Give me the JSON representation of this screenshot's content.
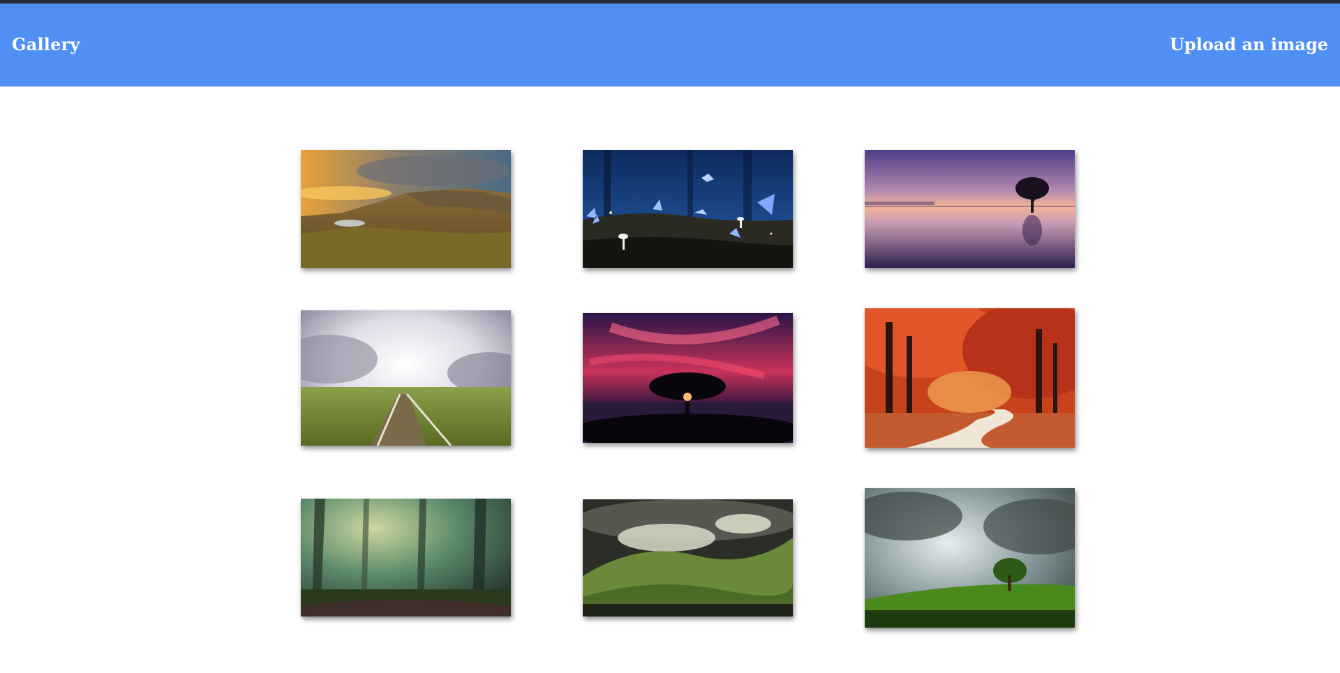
{
  "header": {
    "brand_label": "Gallery",
    "upload_label": "Upload an image",
    "background": "#5090f5",
    "text_color": "#ffffff"
  },
  "gallery": {
    "images": [
      {
        "subject": "mountain-ridge-at-sunset"
      },
      {
        "subject": "blue-butterflies-and-mushrooms"
      },
      {
        "subject": "lone-tree-in-purple-lake"
      },
      {
        "subject": "railway-track-under-clouds"
      },
      {
        "subject": "tree-silhouette-red-sky"
      },
      {
        "subject": "autumn-forest-path"
      },
      {
        "subject": "misty-green-forest"
      },
      {
        "subject": "foggy-green-hills"
      },
      {
        "subject": "tree-on-green-hill-storm-sky"
      }
    ]
  }
}
